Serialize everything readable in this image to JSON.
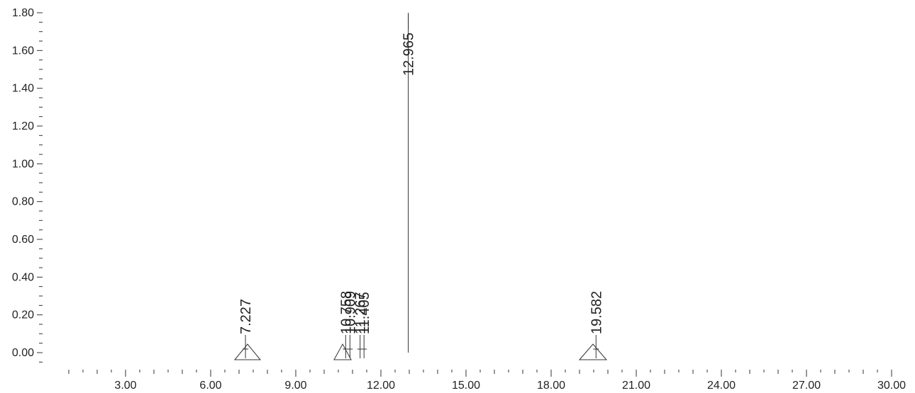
{
  "chart_data": {
    "type": "line",
    "title": "",
    "xlabel": "",
    "ylabel": "",
    "xlim": [
      0.5,
      30.5
    ],
    "ylim": [
      -0.05,
      1.8
    ],
    "x_ticks": [
      "3.00",
      "6.00",
      "9.00",
      "12.00",
      "15.00",
      "18.00",
      "21.00",
      "24.00",
      "27.00",
      "30.00"
    ],
    "y_ticks": [
      "0.00",
      "0.20",
      "0.40",
      "0.60",
      "0.80",
      "1.00",
      "1.20",
      "1.40",
      "1.60",
      "1.80"
    ],
    "grid": false,
    "peaks": [
      {
        "label": "7.227",
        "x": 7.227,
        "y": 0.0
      },
      {
        "label": "10.758",
        "x": 10.758,
        "y": 0.0
      },
      {
        "label": "10.909",
        "x": 10.909,
        "y": 0.0
      },
      {
        "label": "11.267",
        "x": 11.267,
        "y": 0.0
      },
      {
        "label": "11.405",
        "x": 11.405,
        "y": 0.0
      },
      {
        "label": "12.965",
        "x": 12.965,
        "y": 1.8
      },
      {
        "label": "19.582",
        "x": 19.582,
        "y": 0.0
      }
    ],
    "integration_triangles": [
      {
        "peak": "7.227",
        "x_start": 6.85,
        "x_end": 7.75
      },
      {
        "peak": "10.758",
        "x_start": 10.35,
        "x_end": 10.95
      },
      {
        "peak": "19.582",
        "x_start": 19.0,
        "x_end": 19.95
      }
    ]
  }
}
